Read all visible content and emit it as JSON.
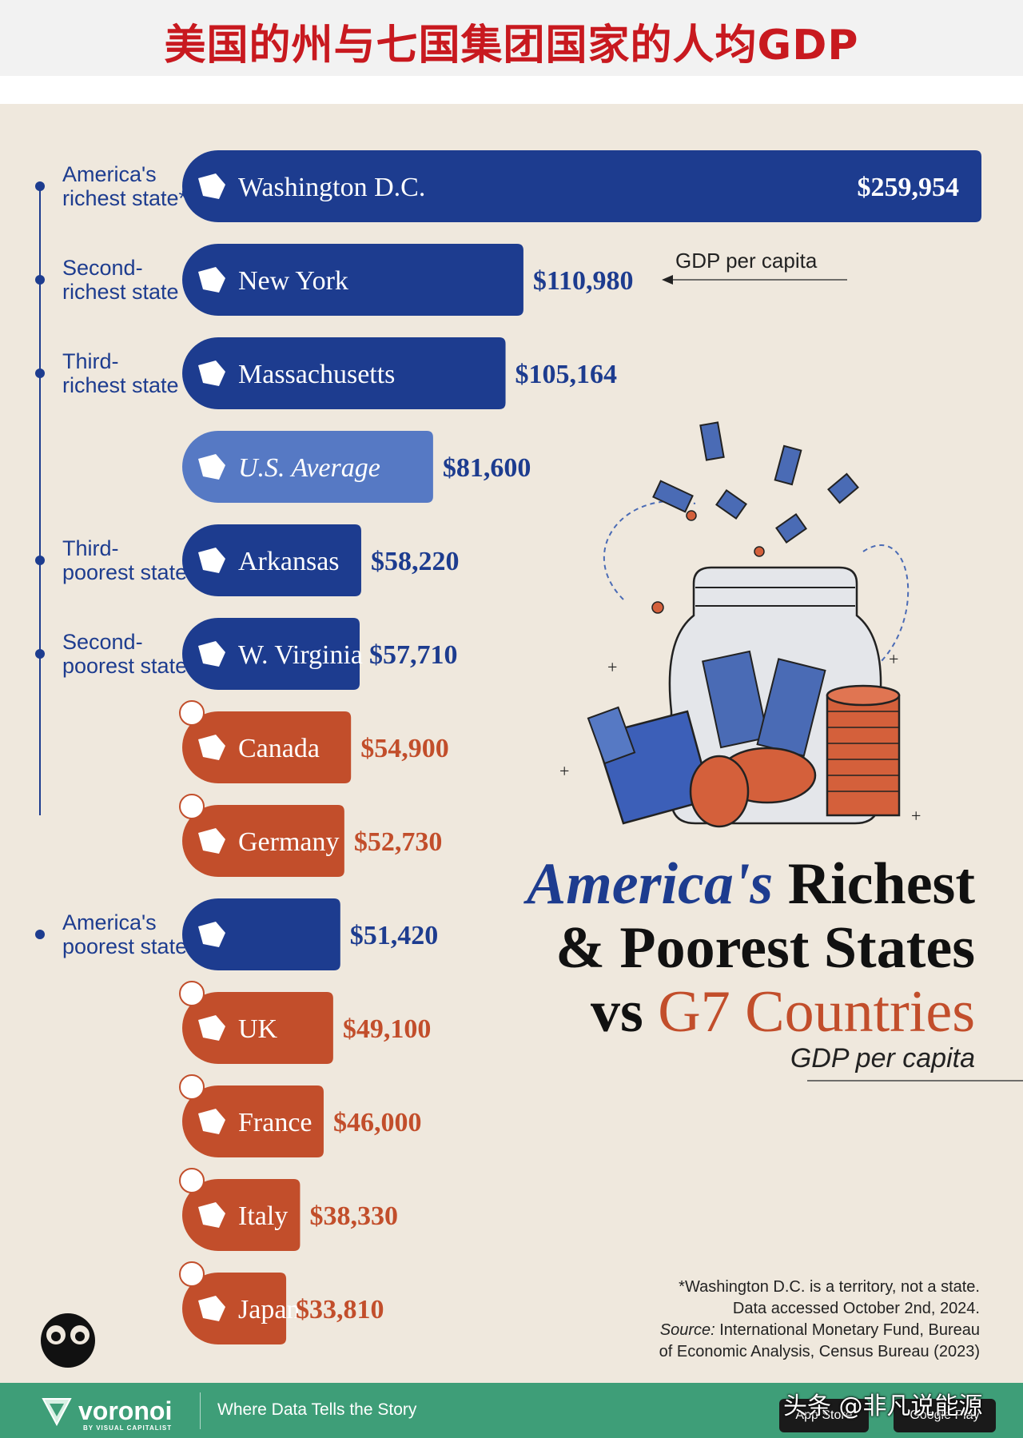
{
  "banner": {
    "title": "美国的州与七国集团国家的人均GDP"
  },
  "chart_data": {
    "type": "bar",
    "orientation": "horizontal",
    "title": "America's Richest & Poorest States vs G7 Countries",
    "title_parts": {
      "america": "America's",
      "richest": "Richest",
      "poorest": "& Poorest States",
      "vs": "vs",
      "g7": "G7 Countries"
    },
    "subtitle": "GDP per capita",
    "annotation": "GDP per capita",
    "categories": [
      "Washington D.C.",
      "New York",
      "Massachusetts",
      "U.S. Average",
      "Arkansas",
      "W. Virginia",
      "Canada",
      "Germany",
      "",
      "UK",
      "France",
      "Italy",
      "Japan"
    ],
    "values": [
      259954,
      110980,
      105164,
      81600,
      58220,
      57710,
      54900,
      52730,
      51420,
      49100,
      46000,
      38330,
      33810
    ],
    "value_labels": [
      "$259,954",
      "$110,980",
      "$105,164",
      "$81,600",
      "$58,220",
      "$57,710",
      "$54,900",
      "$52,730",
      "$51,420",
      "$49,100",
      "$46,000",
      "$38,330",
      "$33,810"
    ],
    "kinds": [
      "state",
      "state",
      "state",
      "average",
      "state",
      "state",
      "country",
      "country",
      "state",
      "country",
      "country",
      "country",
      "country"
    ],
    "rank_labels": [
      [
        "America's",
        "richest state*"
      ],
      [
        "Second-",
        "richest state"
      ],
      [
        "Third-",
        "richest state"
      ],
      [],
      [
        "Third-",
        "poorest state"
      ],
      [
        "Second-",
        "poorest state"
      ],
      [],
      [],
      [
        "America's",
        "poorest state"
      ],
      [],
      [],
      [],
      []
    ],
    "xlim": [
      0,
      259954
    ],
    "grid": false,
    "legend": "none",
    "colors": {
      "state": "#1d3c8f",
      "average": "#5679c4",
      "country": "#c24e2b"
    }
  },
  "notes": {
    "line1": "*Washington D.C. is a territory, not a state.",
    "line2": "Data accessed October 2nd, 2024.",
    "source_label": "Source:",
    "source_text": "International Monetary Fund, Bureau",
    "line4": "of Economic Analysis, Census Bureau (2023)"
  },
  "footer": {
    "brand": "voronoi",
    "brand_sub": "BY VISUAL CAPITALIST",
    "tagline": "Where Data Tells the Story",
    "app_store": "App Store",
    "google_play": "Google Play",
    "watermark": "头条 @非凡说能源"
  }
}
